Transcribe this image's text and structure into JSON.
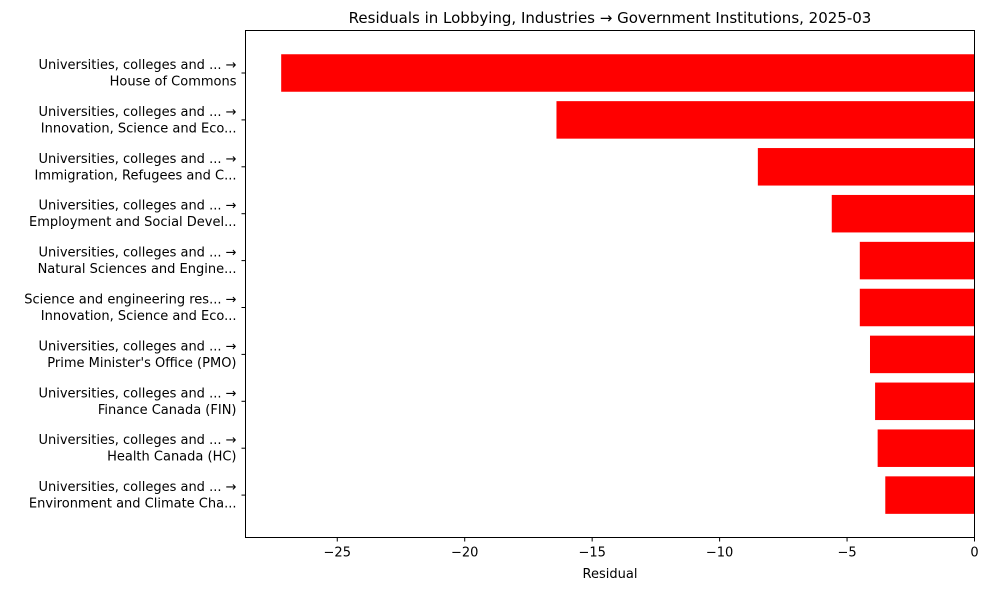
{
  "chart_data": {
    "type": "bar",
    "orientation": "horizontal",
    "title": "Residuals in Lobbying, Industries → Government Institutions, 2025-03",
    "xlabel": "Residual",
    "ylabel": "",
    "xlim": [
      -28.6,
      0
    ],
    "xticks": [
      -25,
      -20,
      -15,
      -10,
      -5,
      0
    ],
    "xtick_labels": [
      "−25",
      "−20",
      "−15",
      "−10",
      "−5",
      "0"
    ],
    "bar_color": "#ff0000",
    "grid": false,
    "categories": [
      [
        "Universities, colleges and ... →",
        "House of Commons"
      ],
      [
        "Universities, colleges and ... →",
        "Innovation, Science and Eco..."
      ],
      [
        "Universities, colleges and ... →",
        "Immigration, Refugees and C..."
      ],
      [
        "Universities, colleges and ... →",
        "Employment and Social Devel..."
      ],
      [
        "Universities, colleges and ... →",
        "Natural Sciences and Engine..."
      ],
      [
        "Science and engineering res... →",
        "Innovation, Science and Eco..."
      ],
      [
        "Universities, colleges and ... →",
        "Prime Minister's Office (PMO)"
      ],
      [
        "Universities, colleges and ... →",
        "Finance Canada (FIN)"
      ],
      [
        "Universities, colleges and ... →",
        "Health Canada (HC)"
      ],
      [
        "Universities, colleges and ... →",
        "Environment and Climate Cha..."
      ]
    ],
    "values": [
      -27.2,
      -16.4,
      -8.5,
      -5.6,
      -4.5,
      -4.5,
      -4.1,
      -3.9,
      -3.8,
      -3.5
    ]
  }
}
